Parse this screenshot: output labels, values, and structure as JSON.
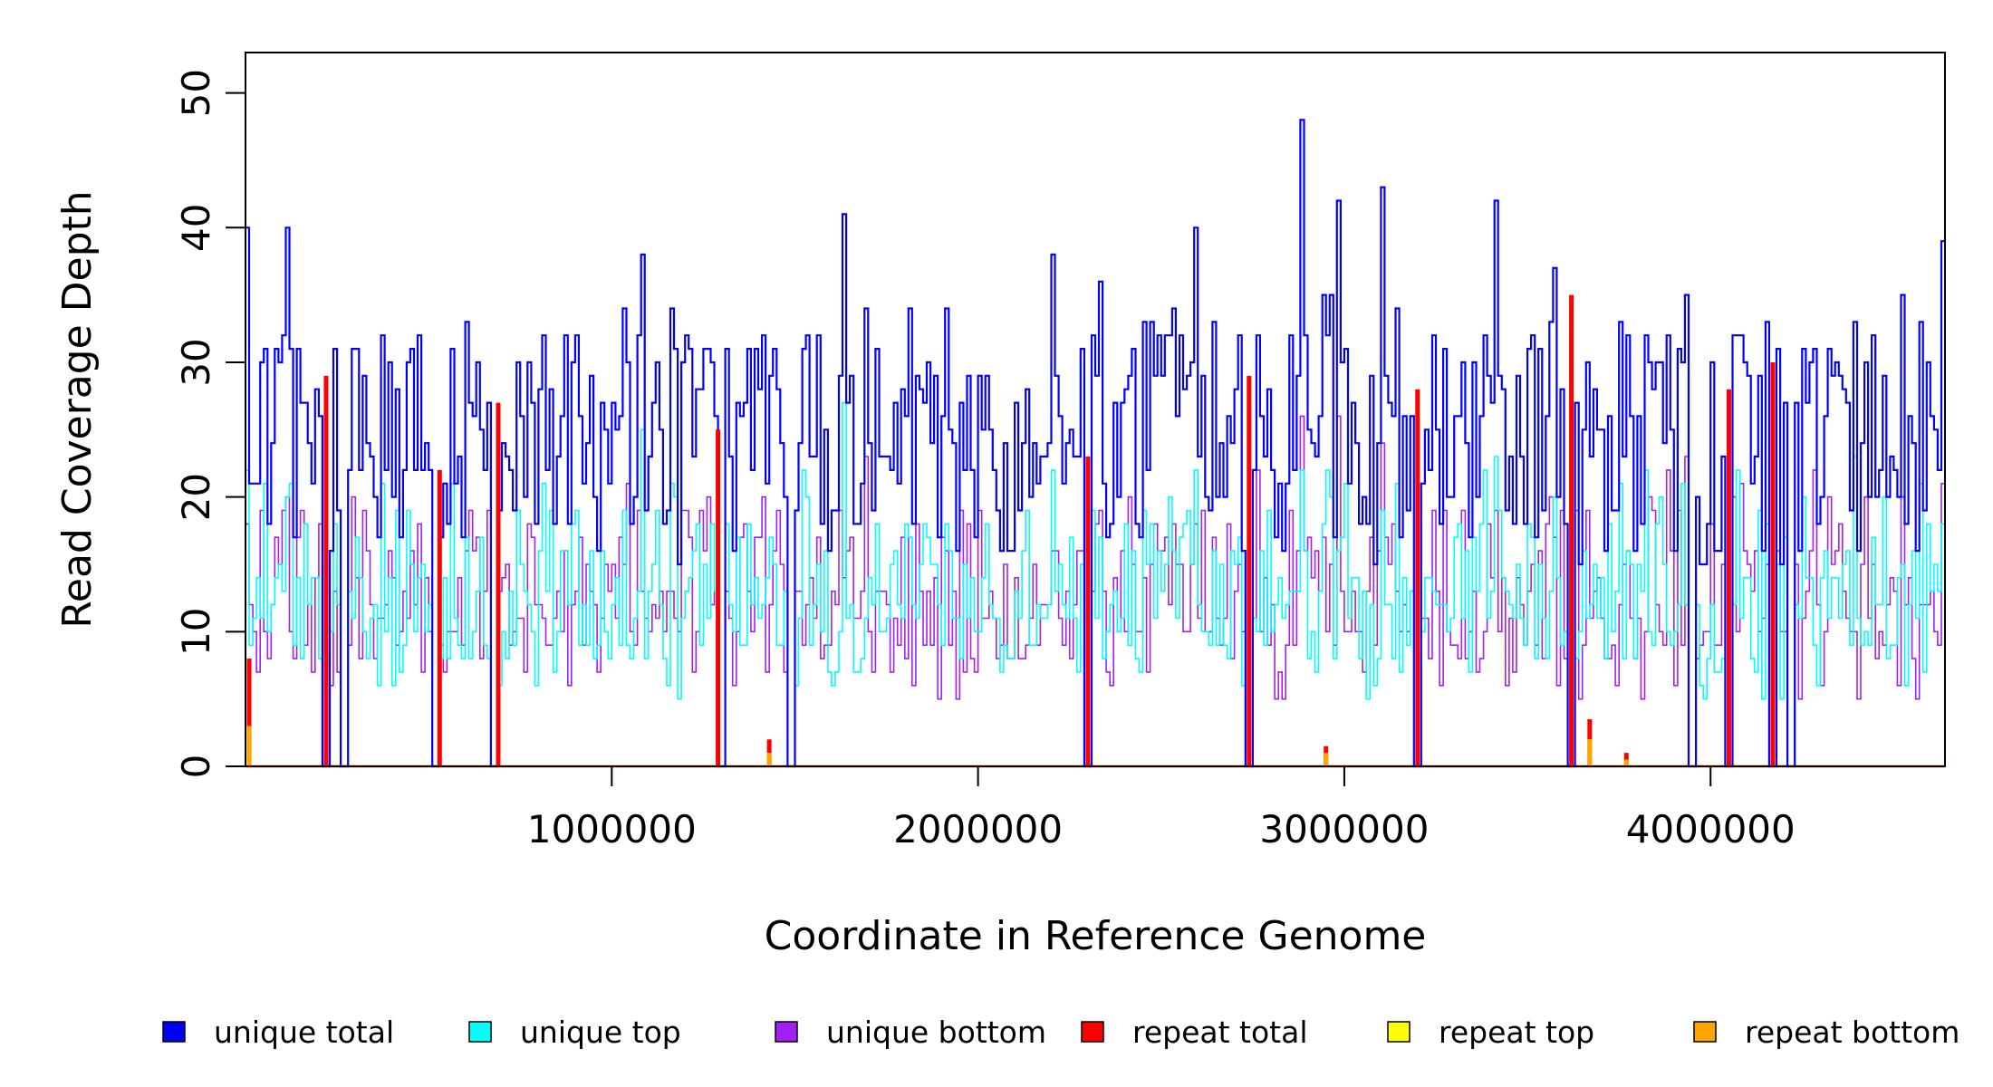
{
  "chart_data": {
    "type": "line",
    "title": "",
    "xlabel": "Coordinate in Reference Genome",
    "ylabel": "Read Coverage Depth",
    "xlim": [
      0,
      4640000
    ],
    "ylim": [
      0,
      53
    ],
    "x_ticks": [
      1000000,
      2000000,
      3000000,
      4000000
    ],
    "x_tick_labels": [
      "1000000",
      "2000000",
      "3000000",
      "4000000"
    ],
    "y_ticks": [
      0,
      10,
      20,
      30,
      40,
      50
    ],
    "y_tick_labels": [
      "0",
      "10",
      "20",
      "30",
      "40",
      "50"
    ],
    "grid": false,
    "legend_position": "bottom",
    "bin_size": 10000,
    "series": [
      {
        "name": "unique total",
        "color": "#0000FF",
        "style": "step",
        "approx_mean": 24,
        "approx_range": [
          14,
          48
        ],
        "peak": {
          "x": 2880000,
          "y": 48
        }
      },
      {
        "name": "unique top",
        "color": "#00FFFF",
        "style": "step",
        "approx_mean": 12,
        "approx_range": [
          2,
          27
        ]
      },
      {
        "name": "unique bottom",
        "color": "#A020F0",
        "style": "step",
        "approx_mean": 12,
        "approx_range": [
          3,
          23
        ]
      },
      {
        "name": "repeat total",
        "color": "#FF0000",
        "style": "spike",
        "points": [
          [
            10000,
            8
          ],
          [
            220000,
            29
          ],
          [
            530000,
            22
          ],
          [
            690000,
            27
          ],
          [
            1290000,
            25
          ],
          [
            1430000,
            2
          ],
          [
            2300000,
            23
          ],
          [
            2740000,
            29
          ],
          [
            2950000,
            1.5
          ],
          [
            3200000,
            28
          ],
          [
            3620000,
            35
          ],
          [
            3670000,
            3.5
          ],
          [
            3770000,
            1
          ],
          [
            4050000,
            28
          ],
          [
            4170000,
            30
          ]
        ]
      },
      {
        "name": "repeat top",
        "color": "#FFFF00",
        "style": "spike",
        "points": [
          [
            1430000,
            1
          ],
          [
            3670000,
            2
          ]
        ]
      },
      {
        "name": "repeat bottom",
        "color": "#FFA500",
        "style": "spike",
        "points": [
          [
            10000,
            3
          ],
          [
            1430000,
            1
          ],
          [
            2950000,
            1
          ],
          [
            3670000,
            2
          ],
          [
            3770000,
            0.5
          ]
        ]
      }
    ],
    "dropouts_to_zero": [
      220000,
      270000,
      520000,
      680000,
      1300000,
      1490000,
      2300000,
      2740000,
      3200000,
      3620000,
      3950000,
      4050000,
      4170000,
      4220000
    ]
  },
  "legend": [
    {
      "label": "unique total",
      "color": "#0000FF"
    },
    {
      "label": "unique top",
      "color": "#00FFFF"
    },
    {
      "label": "unique bottom",
      "color": "#A020F0"
    },
    {
      "label": "repeat total",
      "color": "#FF0000"
    },
    {
      "label": "repeat top",
      "color": "#FFFF00"
    },
    {
      "label": "repeat bottom",
      "color": "#FFA500"
    }
  ]
}
